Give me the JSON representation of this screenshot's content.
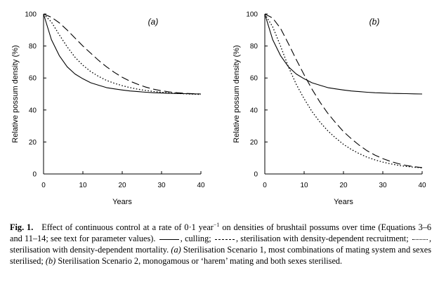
{
  "chart_data": [
    {
      "type": "line",
      "panel_label": "(a)",
      "xlabel": "Years",
      "ylabel": "Relative possum density (%)",
      "xlim": [
        0,
        40
      ],
      "ylim": [
        0,
        100
      ],
      "x_ticks": [
        0,
        10,
        20,
        30,
        40
      ],
      "y_ticks": [
        0,
        20,
        40,
        60,
        80,
        100
      ],
      "grid": false,
      "x": [
        0,
        2,
        4,
        6,
        8,
        10,
        12,
        14,
        16,
        18,
        20,
        22,
        24,
        26,
        28,
        30,
        32,
        34,
        36,
        38,
        40
      ],
      "series": [
        {
          "name": "culling",
          "style": "solid",
          "values": [
            100,
            84,
            74,
            67,
            62.5,
            59.5,
            57,
            55.5,
            54,
            53.2,
            52.5,
            51.9,
            51.5,
            51.1,
            50.8,
            50.6,
            50.4,
            50.3,
            50.2,
            50.1,
            50
          ]
        },
        {
          "name": "sterilisation with density-dependent recruitment",
          "style": "dashed",
          "values": [
            100,
            98,
            94.5,
            90,
            85,
            80,
            75.5,
            71,
            67,
            63.5,
            60.5,
            58,
            56,
            54.3,
            53,
            52,
            51.3,
            50.8,
            50.4,
            50.2,
            50
          ]
        },
        {
          "name": "sterilisation with density-dependent mortality",
          "style": "dotted",
          "values": [
            100,
            95,
            87,
            79.5,
            73,
            68,
            64,
            61,
            58.5,
            56.7,
            55.2,
            54,
            53,
            52.2,
            51.6,
            51.1,
            50.7,
            50.4,
            50.1,
            49.9,
            49.7
          ]
        }
      ]
    },
    {
      "type": "line",
      "panel_label": "(b)",
      "xlabel": "Years",
      "ylabel": "Relative possum density (%)",
      "xlim": [
        0,
        40
      ],
      "ylim": [
        0,
        100
      ],
      "x_ticks": [
        0,
        10,
        20,
        30,
        40
      ],
      "y_ticks": [
        0,
        20,
        40,
        60,
        80,
        100
      ],
      "grid": false,
      "x": [
        0,
        2,
        4,
        6,
        8,
        10,
        12,
        14,
        16,
        18,
        20,
        22,
        24,
        26,
        28,
        30,
        32,
        34,
        36,
        38,
        40
      ],
      "series": [
        {
          "name": "culling",
          "style": "solid",
          "values": [
            100,
            84,
            74,
            67,
            62.5,
            59.5,
            57,
            55.5,
            54,
            53.2,
            52.5,
            51.9,
            51.5,
            51.1,
            50.8,
            50.6,
            50.4,
            50.3,
            50.2,
            50.1,
            50
          ]
        },
        {
          "name": "sterilisation with density-dependent recruitment",
          "style": "dashed",
          "values": [
            100,
            97.5,
            91,
            81.5,
            71.5,
            62,
            53,
            45,
            38,
            32,
            26.5,
            22,
            18,
            14.5,
            11.8,
            9.6,
            7.8,
            6.4,
            5.3,
            4.5,
            4
          ]
        },
        {
          "name": "sterilisation with density-dependent mortality",
          "style": "dotted",
          "values": [
            100,
            92,
            80,
            67,
            56,
            47,
            39,
            32.5,
            27,
            22.5,
            18.5,
            15.3,
            12.7,
            10.5,
            8.8,
            7.4,
            6.3,
            5.4,
            4.7,
            4.2,
            3.8
          ]
        }
      ]
    }
  ],
  "caption": {
    "label": "Fig. 1.",
    "text_1": "Effect of continuous control at a rate of 0·1 year",
    "superscript": "−1",
    "text_2": " on densities of brushtail possums over time (Equations 3–6 and 11–14; see text for parameter values).",
    "text_3": ", culling;",
    "text_4": ", sterilisation with density-dependent recruitment;",
    "text_5": ", sterilisation with density-dependent mortality.",
    "text_6": "(a)",
    "text_7": " Sterilisation Scenario 1, most combinations of mating system and sexes sterilised;",
    "text_8": "(b)",
    "text_9": " Sterilisation Scenario 2, monogamous or ‘harem’ mating and both sexes sterilised."
  }
}
